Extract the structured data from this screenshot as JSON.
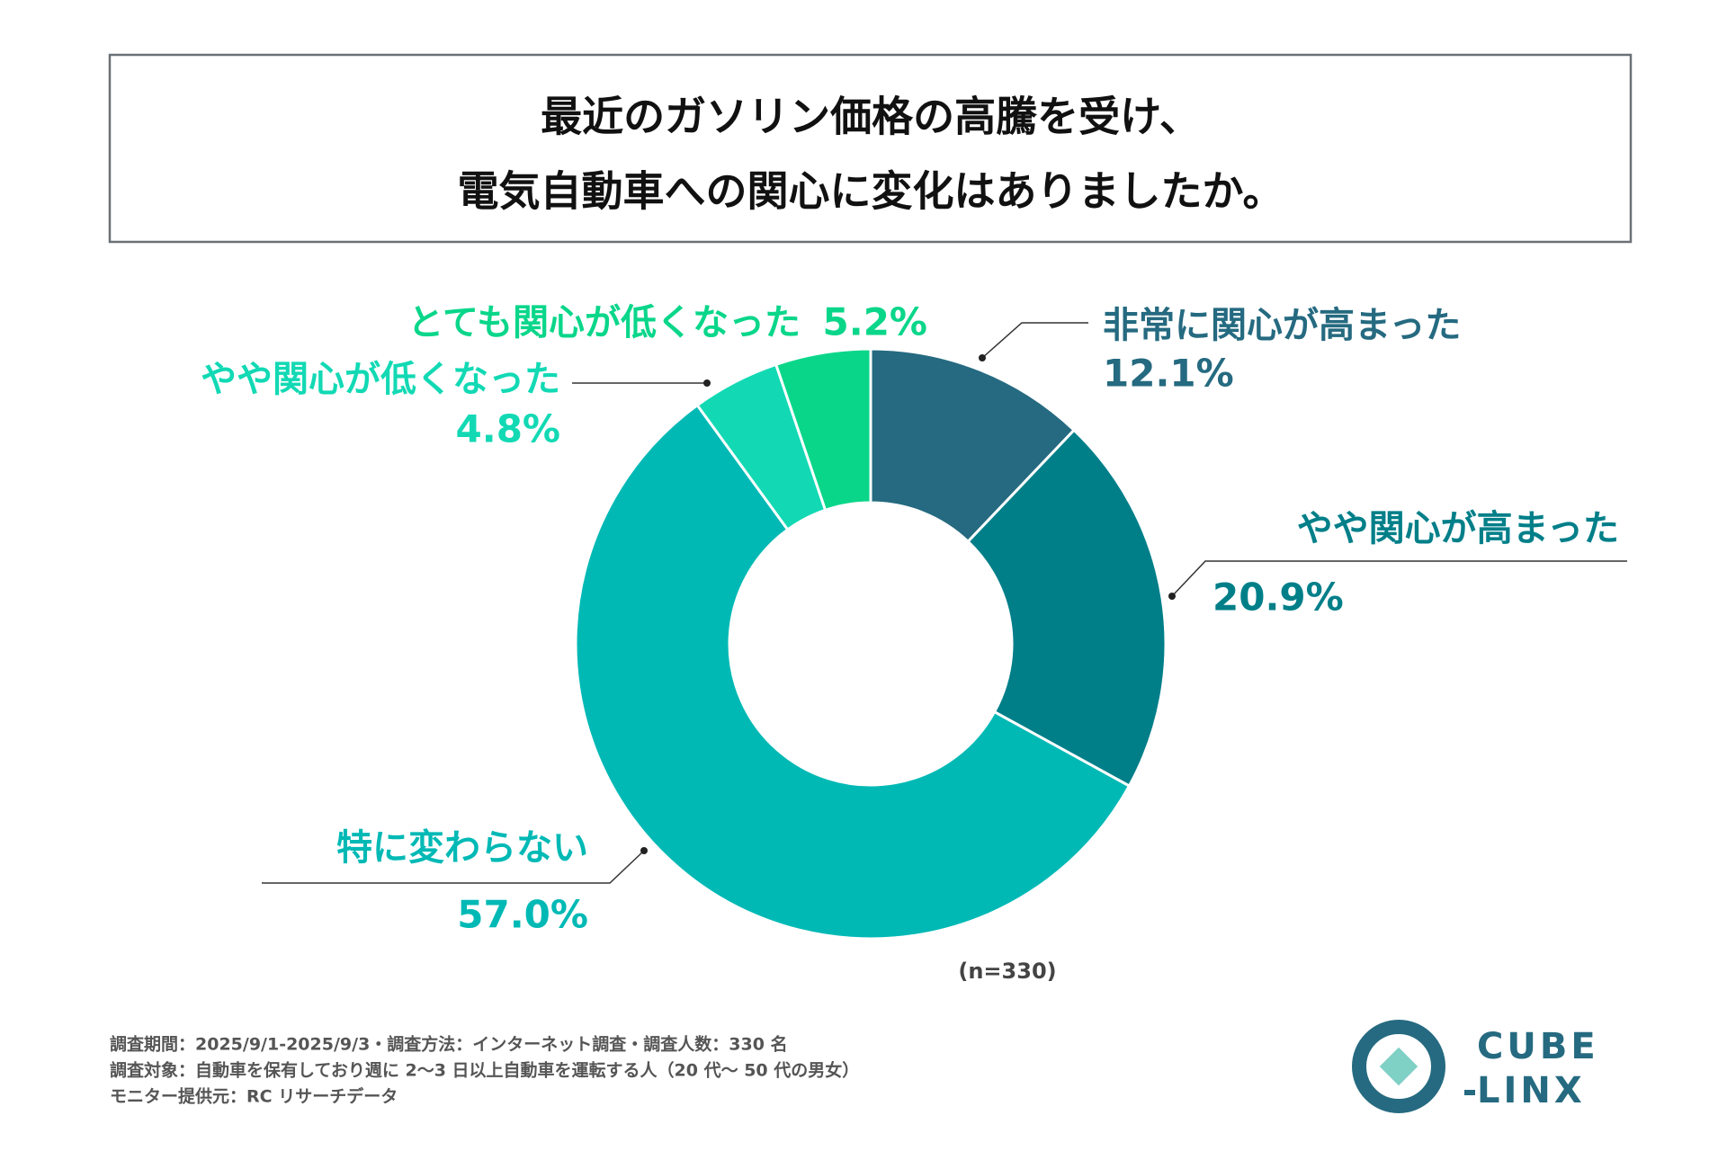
{
  "chart_data": {
    "type": "donut",
    "title": [
      "最近のガソリン価格の高騰を受け、",
      "電気自動車への関心に変化はありましたか。"
    ],
    "categories": [
      "非常に関心が高まった",
      "やや関心が高まった",
      "特に変わらない",
      "やや関心が低くなった",
      "とても関心が低くなった"
    ],
    "values": [
      12.1,
      20.9,
      57.0,
      4.8,
      5.2
    ],
    "value_labels": [
      "12.1%",
      "20.9%",
      "57.0%",
      "4.8%",
      "5.2%"
    ],
    "colors": [
      "#256a80",
      "#007f89",
      "#00b9b5",
      "#12d9b4",
      "#0ad68a"
    ],
    "note": "(n=330)"
  },
  "footnotes": [
    "調査期間：2025/9/1-2025/9/3・調査方法：インターネット調査・調査人数：330 名",
    "調査対象：自動車を保有しており週に 2〜3 日以上自動車を運転する人（20 代〜 50 代の男女）",
    "モニター提供元：RC リサーチデータ"
  ],
  "logo": {
    "line1": "CUBE",
    "line2": "LINX"
  }
}
